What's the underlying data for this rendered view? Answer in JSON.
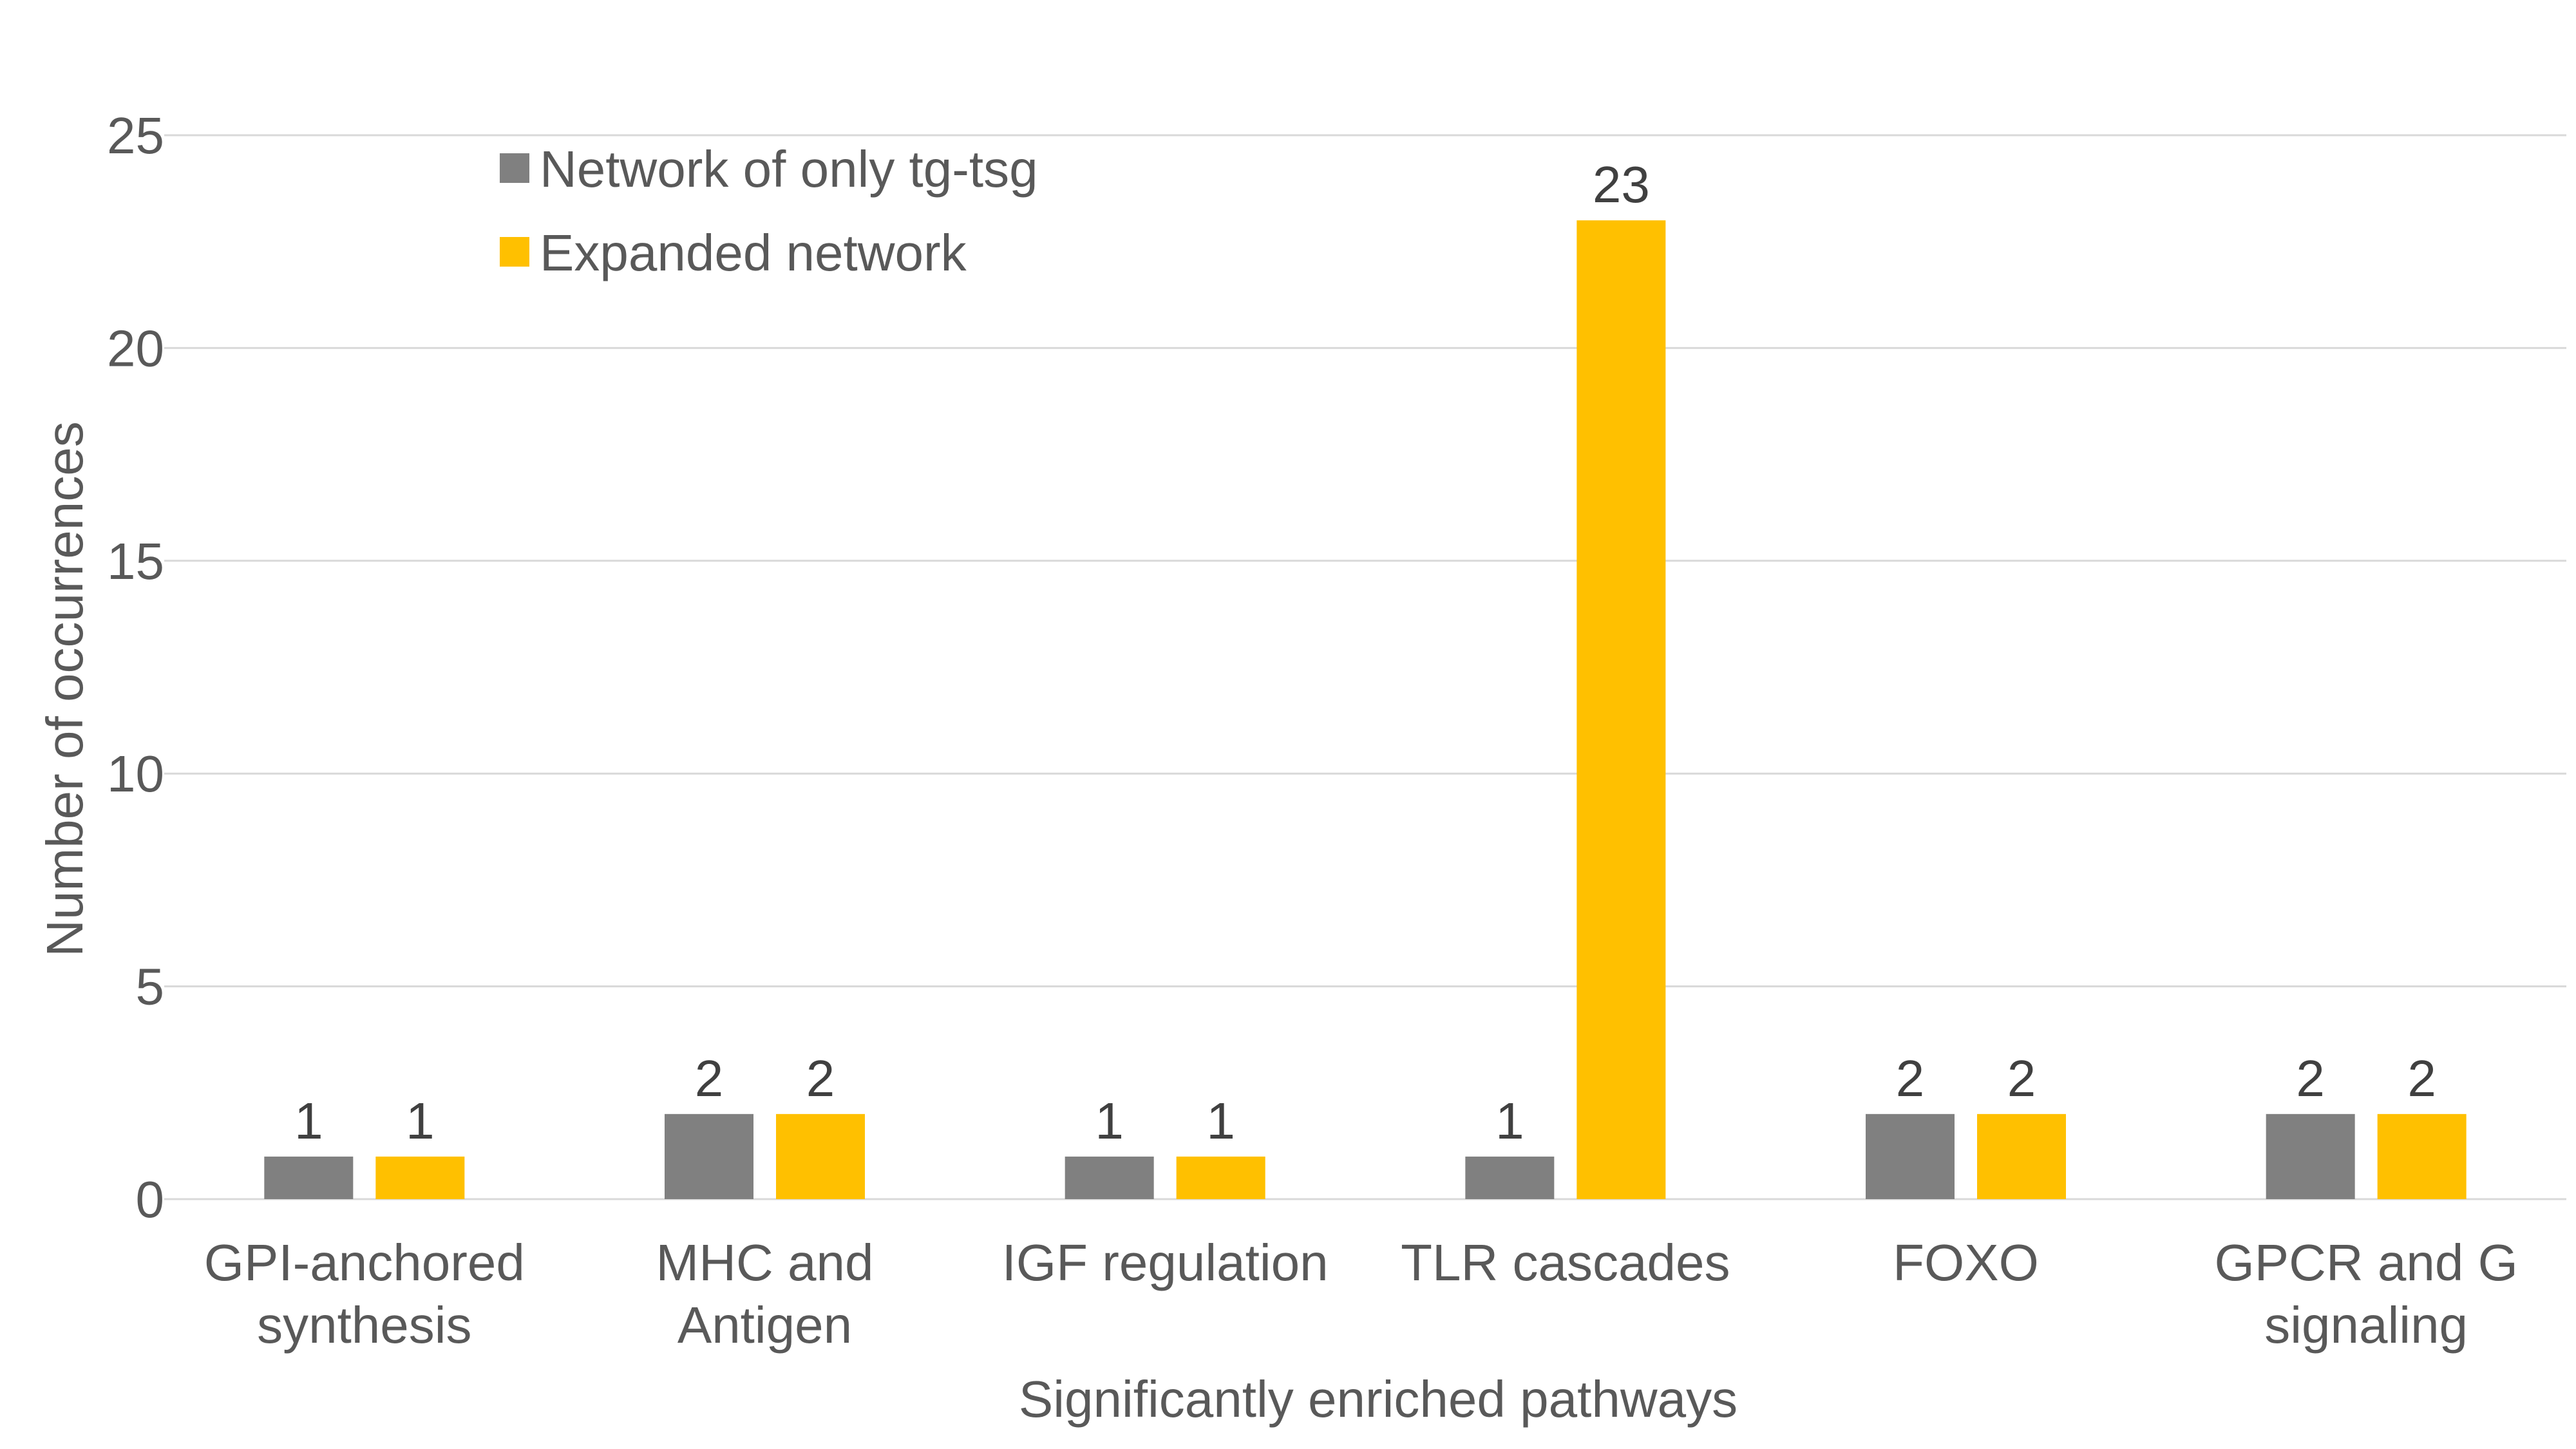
{
  "chart_data": {
    "type": "bar",
    "title": "",
    "xlabel": "Significantly enriched pathways",
    "ylabel": "Number of occurrences",
    "ylim": [
      0,
      25
    ],
    "yticks": [
      0,
      5,
      10,
      15,
      20,
      25
    ],
    "grid": true,
    "legend_position": "top-left",
    "categories": [
      [
        "GPI-anchored",
        "synthesis"
      ],
      [
        "MHC and",
        "Antigen"
      ],
      [
        "IGF regulation"
      ],
      [
        "TLR cascades"
      ],
      [
        "FOXO"
      ],
      [
        "GPCR and G",
        "signaling"
      ]
    ],
    "series": [
      {
        "name": "Network of only tg-tsg",
        "color": "#808080",
        "values": [
          1,
          2,
          1,
          1,
          2,
          2
        ]
      },
      {
        "name": "Expanded network",
        "color": "#FFC000",
        "values": [
          1,
          2,
          1,
          23,
          2,
          2
        ]
      }
    ]
  }
}
